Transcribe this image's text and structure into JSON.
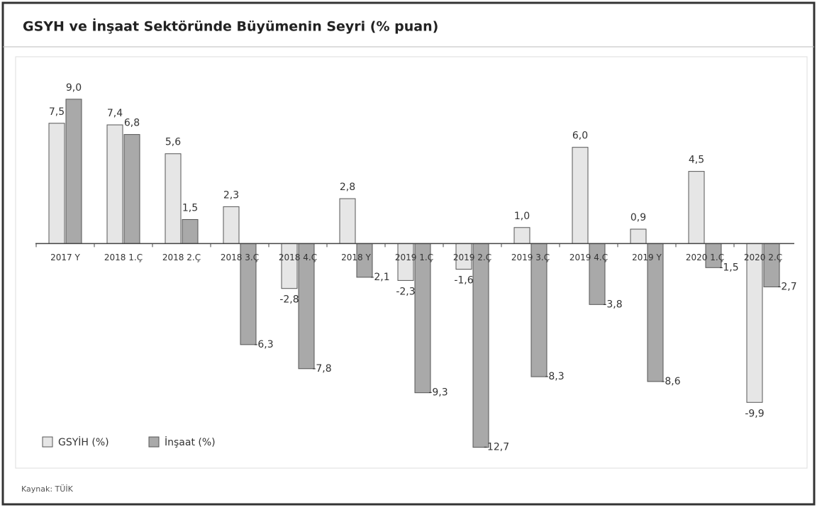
{
  "chart_data": {
    "type": "bar",
    "title": "GSYH ve İnşaat Sektöründe Büyümenin Seyri (% puan)",
    "source": "Kaynak: TÜİK",
    "categories": [
      "2017 Y",
      "2018 1.Ç",
      "2018 2.Ç",
      "2018 3.Ç",
      "2018 4.Ç",
      "2018 Y",
      "2019 1.Ç",
      "2019 2.Ç",
      "2019 3.Ç",
      "2019 4.Ç",
      "2019 Y",
      "2020 1.Ç",
      "2020 2.Ç"
    ],
    "series": [
      {
        "name": "GSYİH (%)",
        "color": "#e6e6e6",
        "values": [
          7.5,
          7.4,
          5.6,
          2.3,
          -2.8,
          2.8,
          -2.3,
          -1.6,
          1.0,
          6.0,
          0.9,
          4.5,
          -9.9
        ],
        "value_labels": [
          "7,5",
          "7,4",
          "5,6",
          "2,3",
          "-2,8",
          "2,8",
          "-2,3",
          "-1,6",
          "1,0",
          "6,0",
          "0,9",
          "4,5",
          "-9,9"
        ]
      },
      {
        "name": "İnşaat (%)",
        "color": "#a9a9a9",
        "values": [
          9.0,
          6.8,
          1.5,
          -6.3,
          -7.8,
          -2.1,
          -9.3,
          -12.7,
          -8.3,
          -3.8,
          -8.6,
          -1.5,
          -2.7
        ],
        "value_labels": [
          "9,0",
          "6,8",
          "1,5",
          "-6,3",
          "-7,8",
          "-2,1",
          "-9,3",
          "-12,7",
          "-8,3",
          "-3,8",
          "-8,6",
          "-1,5",
          "-2,7"
        ]
      }
    ],
    "ylim": [
      -14,
      12
    ]
  }
}
